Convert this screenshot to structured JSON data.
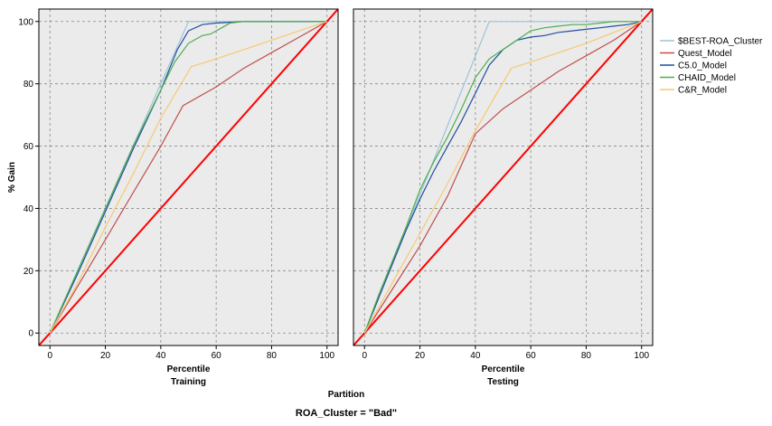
{
  "chart_data": {
    "type": "line",
    "ylabel": "% Gain",
    "xlabel": "Percentile",
    "facet_title": "Partition",
    "caption": "ROA_Cluster = \"Bad\"",
    "xlim": [
      -4,
      104
    ],
    "ylim": [
      -4,
      104
    ],
    "x_ticks": [
      "0",
      "20",
      "40",
      "60",
      "80",
      "100"
    ],
    "y_ticks": [
      "0",
      "20",
      "40",
      "60",
      "80",
      "100"
    ],
    "grid": true,
    "legend_position": "right",
    "series_styles": [
      {
        "name": "$BEST-ROA_Cluster",
        "color": "#9cc3dc"
      },
      {
        "name": "Quest_Model",
        "color": "#c0504d"
      },
      {
        "name": "C5.0_Model",
        "color": "#1f4e9c"
      },
      {
        "name": "CHAID_Model",
        "color": "#4caf50"
      },
      {
        "name": "C&R_Model",
        "color": "#f7c873"
      }
    ],
    "baseline": {
      "color": "#ff0000",
      "x": [
        -4,
        104
      ],
      "y": [
        -4,
        104
      ]
    },
    "panels": [
      {
        "label": "Training",
        "series": [
          {
            "name": "$BEST-ROA_Cluster",
            "x": [
              0,
              50,
              100
            ],
            "y": [
              0,
              100,
              100
            ]
          },
          {
            "name": "Quest_Model",
            "x": [
              0,
              10,
              20,
              30,
              40,
              48,
              60,
              70,
              80,
              90,
              100
            ],
            "y": [
              0,
              15,
              30,
              45,
              60,
              73,
              79,
              85,
              90,
              95,
              100
            ]
          },
          {
            "name": "C5.0_Model",
            "x": [
              0,
              10,
              20,
              30,
              40,
              46,
              50,
              55,
              60,
              70,
              80,
              90,
              100
            ],
            "y": [
              0,
              19,
              39,
              59,
              78,
              91,
              97,
              99,
              99.5,
              100,
              100,
              100,
              100
            ]
          },
          {
            "name": "CHAID_Model",
            "x": [
              0,
              10,
              20,
              30,
              40,
              45,
              50,
              55,
              58,
              62,
              65,
              70,
              80,
              100
            ],
            "y": [
              0,
              20,
              40,
              60,
              78,
              87,
              93,
              95.5,
              96,
              98,
              99.5,
              100,
              100,
              100
            ]
          },
          {
            "name": "C&R_Model",
            "x": [
              0,
              10,
              20,
              30,
              40,
              51,
              60,
              70,
              80,
              90,
              100
            ],
            "y": [
              0,
              16,
              34,
              51,
              69,
              85.5,
              88,
              91,
              94,
              97,
              100
            ]
          }
        ]
      },
      {
        "label": "Testing",
        "series": [
          {
            "name": "$BEST-ROA_Cluster",
            "x": [
              0,
              45,
              100
            ],
            "y": [
              0,
              100,
              100
            ]
          },
          {
            "name": "Quest_Model",
            "x": [
              0,
              10,
              20,
              30,
              40,
              50,
              60,
              70,
              80,
              90,
              100
            ],
            "y": [
              0,
              14,
              28,
              44,
              64,
              72,
              78,
              84,
              89,
              94,
              100
            ]
          },
          {
            "name": "C5.0_Model",
            "x": [
              0,
              5,
              10,
              15,
              20,
              25,
              30,
              35,
              40,
              45,
              50,
              55,
              60,
              65,
              70,
              75,
              80,
              85,
              90,
              95,
              100
            ],
            "y": [
              0,
              11,
              22,
              33,
              43,
              52,
              60,
              68,
              77,
              86,
              91,
              94,
              95,
              95.5,
              96.5,
              97,
              97.5,
              98,
              98.5,
              99,
              100
            ]
          },
          {
            "name": "CHAID_Model",
            "x": [
              0,
              5,
              10,
              15,
              20,
              25,
              30,
              35,
              40,
              45,
              50,
              55,
              60,
              65,
              70,
              75,
              80,
              85,
              90,
              95,
              100
            ],
            "y": [
              0,
              12,
              23,
              34,
              46,
              55,
              63,
              72,
              82,
              88,
              91,
              94,
              97,
              98,
              98.5,
              99,
              99,
              99.5,
              100,
              100,
              100
            ]
          },
          {
            "name": "C&R_Model",
            "x": [
              0,
              10,
              20,
              30,
              40,
              53,
              60,
              70,
              80,
              90,
              100
            ],
            "y": [
              0,
              16,
              32,
              48,
              65,
              85,
              87,
              90,
              93,
              96.5,
              100
            ]
          }
        ]
      }
    ]
  }
}
